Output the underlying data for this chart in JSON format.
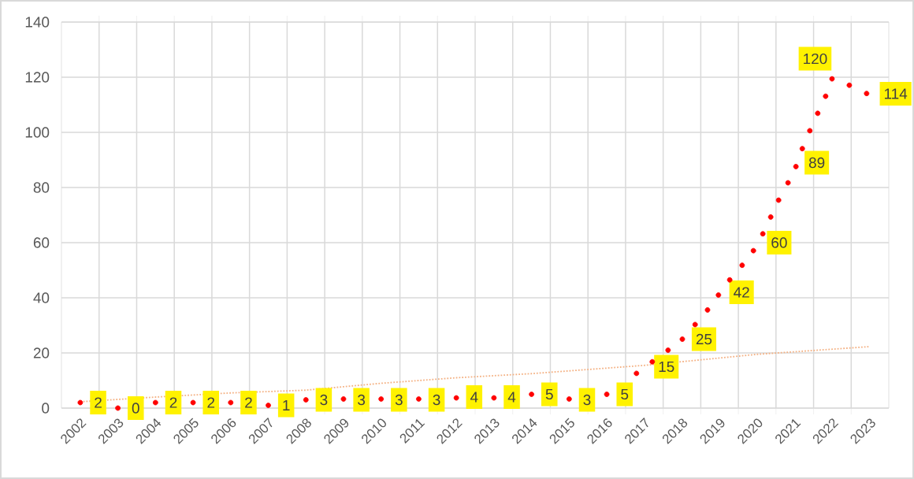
{
  "chart_data": {
    "type": "scatter",
    "xlim": [
      2001.5,
      2023.5
    ],
    "xticks": [
      2002,
      2003,
      2004,
      2005,
      2006,
      2007,
      2008,
      2009,
      2010,
      2011,
      2012,
      2013,
      2014,
      2015,
      2016,
      2017,
      2018,
      2019,
      2020,
      2021,
      2022,
      2023,
      {
        "value": 2002.5,
        "label": null
      },
      {
        "value": 2003.5,
        "label": null
      },
      {
        "value": 2004.5,
        "label": null
      },
      {
        "value": 2005.5,
        "label": null
      },
      {
        "value": 2006.5,
        "label": null
      },
      {
        "value": 2007.5,
        "label": null
      },
      {
        "value": 2008.5,
        "label": null
      },
      {
        "value": 2009.5,
        "label": null
      },
      {
        "value": 2010.5,
        "label": null
      },
      {
        "value": 2011.5,
        "label": null
      },
      {
        "value": 2012.5,
        "label": null
      },
      {
        "value": 2013.5,
        "label": null
      },
      {
        "value": 2014.5,
        "label": null
      },
      {
        "value": 2015.5,
        "label": null
      },
      {
        "value": 2016.5,
        "label": null
      },
      {
        "value": 2017.5,
        "label": null
      },
      {
        "value": 2018.5,
        "label": null
      },
      {
        "value": 2019.5,
        "label": null
      },
      {
        "value": 2020.5,
        "label": null
      },
      {
        "value": 2021.5,
        "label": null
      },
      {
        "value": 2022.5,
        "label": null
      }
    ],
    "ylim": [
      0,
      140
    ],
    "yticks": [
      0,
      20,
      40,
      60,
      80,
      100,
      120,
      140
    ],
    "grid": true,
    "series": [
      {
        "color": "#ff0000",
        "x": [
          2002,
          2003,
          2004,
          2005,
          2006,
          2007,
          2008,
          2009,
          2010,
          2011,
          2012,
          2013,
          2014,
          2015,
          2016,
          2016.79,
          2017.21,
          2017.63,
          2018.01,
          2018.35,
          2018.68,
          2018.97,
          2019.27,
          2019.6,
          2019.9,
          2020.15,
          2020.36,
          2020.57,
          2020.82,
          2021.03,
          2021.2,
          2021.4,
          2021.61,
          2021.82,
          2021.99,
          2022.45,
          2022.91
        ],
        "values": [
          2,
          0,
          2,
          2,
          2,
          1,
          3,
          3.3,
          3.3,
          3.3,
          3.7,
          3.7,
          5,
          3.3,
          5,
          12.6,
          16.8,
          21,
          25,
          30.3,
          35.6,
          41,
          46.5,
          51.8,
          57.1,
          63.2,
          69.3,
          75.4,
          81.7,
          87.6,
          94.1,
          100.6,
          106.9,
          113.1,
          119.4,
          117.1,
          114.1
        ]
      },
      {
        "type": "line",
        "line_style": "dotted",
        "color": "#f4b183",
        "x": [
          2002,
          2004,
          2006,
          2008,
          2010,
          2012,
          2014,
          2017,
          2020,
          2023
        ],
        "values": [
          2.3,
          4,
          5.5,
          6.5,
          9,
          11,
          12.5,
          15.5,
          19.5,
          22.3
        ]
      }
    ],
    "annotations": [
      {
        "text": "2",
        "x": 2002,
        "y": 2
      },
      {
        "text": "0",
        "x": 2003,
        "y": 0
      },
      {
        "text": "2",
        "x": 2004,
        "y": 2
      },
      {
        "text": "2",
        "x": 2005,
        "y": 2
      },
      {
        "text": "2",
        "x": 2006,
        "y": 2
      },
      {
        "text": "1",
        "x": 2007,
        "y": 1
      },
      {
        "text": "3",
        "x": 2008,
        "y": 3
      },
      {
        "text": "3",
        "x": 2009,
        "y": 3
      },
      {
        "text": "3",
        "x": 2010,
        "y": 3
      },
      {
        "text": "3",
        "x": 2011,
        "y": 3
      },
      {
        "text": "4",
        "x": 2012,
        "y": 4
      },
      {
        "text": "4",
        "x": 2013,
        "y": 4
      },
      {
        "text": "5",
        "x": 2014,
        "y": 5
      },
      {
        "text": "3",
        "x": 2015,
        "y": 3
      },
      {
        "text": "5",
        "x": 2016,
        "y": 5
      },
      {
        "text": "15",
        "x": 2017,
        "y": 15
      },
      {
        "text": "25",
        "x": 2018,
        "y": 25
      },
      {
        "text": "42",
        "x": 2019,
        "y": 42
      },
      {
        "text": "60",
        "x": 2020,
        "y": 60
      },
      {
        "text": "89",
        "x": 2021,
        "y": 89
      },
      {
        "text": "120",
        "x": 2022,
        "y": 120
      },
      {
        "text": "114",
        "x": 2023,
        "y": 114
      }
    ]
  }
}
